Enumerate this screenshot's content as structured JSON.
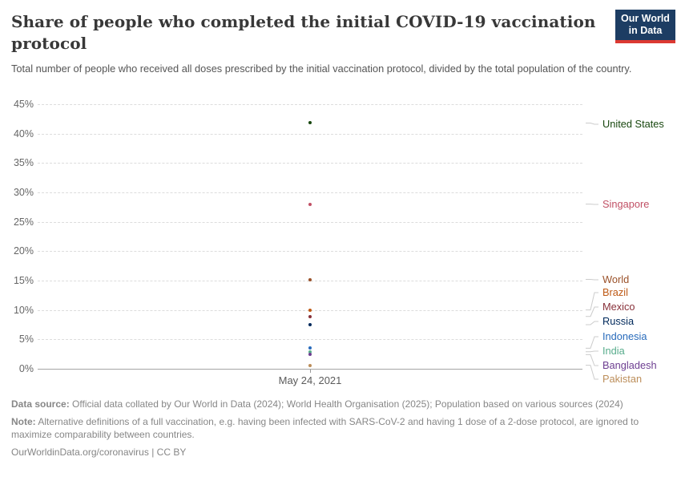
{
  "header": {
    "title": "Share of people who completed the initial COVID-19 vaccination protocol",
    "subtitle": "Total number of people who received all doses prescribed by the initial vaccination protocol, divided by the total population of the country.",
    "logo": {
      "line1": "Our World",
      "line2": "in Data",
      "bg_color": "#1d3d63",
      "accent_color": "#dc3932"
    }
  },
  "chart_data": {
    "type": "scatter",
    "title": "Share of people who completed the initial COVID-19 vaccination protocol",
    "x": [
      "May 24, 2021"
    ],
    "x_label": "May 24, 2021",
    "ylim": [
      0,
      45
    ],
    "ytick_step": 5,
    "yticks": [
      "0%",
      "5%",
      "10%",
      "15%",
      "20%",
      "25%",
      "30%",
      "35%",
      "40%",
      "45%"
    ],
    "grid": "dashed-horizontal",
    "legend_position": "right-labels",
    "series": [
      {
        "name": "United States",
        "values": [
          41.8
        ],
        "color": "#18470f",
        "label_y": 33
      },
      {
        "name": "Singapore",
        "values": [
          28.0
        ],
        "color": "#c15065",
        "label_y": 133
      },
      {
        "name": "World",
        "values": [
          15.2
        ],
        "color": "#9a5129",
        "label_y": 227
      },
      {
        "name": "Brazil",
        "values": [
          10.0
        ],
        "color": "#be5915",
        "label_y": 243
      },
      {
        "name": "Mexico",
        "values": [
          8.9
        ],
        "color": "#883039",
        "label_y": 261
      },
      {
        "name": "Russia",
        "values": [
          7.5
        ],
        "color": "#00295b",
        "label_y": 279
      },
      {
        "name": "Indonesia",
        "values": [
          3.5
        ],
        "color": "#286bbb",
        "label_y": 298
      },
      {
        "name": "India",
        "values": [
          2.9
        ],
        "color": "#58ac8c",
        "label_y": 316
      },
      {
        "name": "Bangladesh",
        "values": [
          2.4
        ],
        "color": "#6d3e91",
        "label_y": 334
      },
      {
        "name": "Pakistan",
        "values": [
          0.6
        ],
        "color": "#bc8e5a",
        "label_y": 351
      }
    ]
  },
  "footer": {
    "data_source_label": "Data source:",
    "data_source_text": " Official data collated by Our World in Data (2024); World Health Organisation (2025); Population based on various sources (2024)",
    "note_label": "Note:",
    "note_text": " Alternative definitions of a full vaccination, e.g. having been infected with SARS-CoV-2 and having 1 dose of a 2-dose protocol, are ignored to maximize comparability between countries.",
    "url_text": "OurWorldinData.org/coronavirus",
    "separator": "|",
    "license": "CC BY"
  }
}
